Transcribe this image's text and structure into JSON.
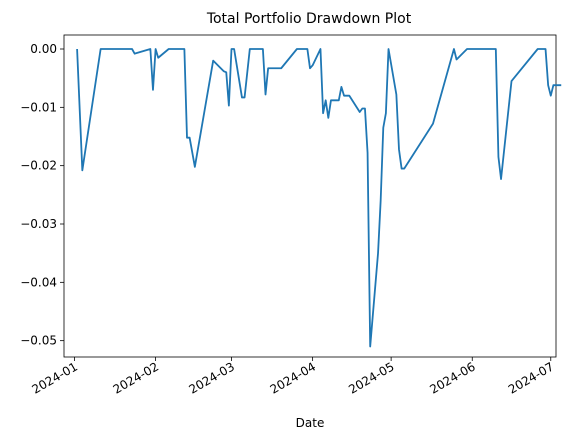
{
  "chart_data": {
    "type": "line",
    "title": "Total Portfolio Drawdown Plot",
    "xlabel": "Date",
    "ylabel": "",
    "x_is_date": true,
    "xlim": [
      "2023-12-28",
      "2024-07-03"
    ],
    "ylim": [
      -0.0528,
      0.0024
    ],
    "xticks": [
      {
        "date": "2024-01-01",
        "label": "2024-01"
      },
      {
        "date": "2024-02-01",
        "label": "2024-02"
      },
      {
        "date": "2024-03-01",
        "label": "2024-03"
      },
      {
        "date": "2024-04-01",
        "label": "2024-04"
      },
      {
        "date": "2024-05-01",
        "label": "2024-05"
      },
      {
        "date": "2024-06-01",
        "label": "2024-06"
      },
      {
        "date": "2024-07-01",
        "label": "2024-07"
      }
    ],
    "yticks": [
      {
        "value": 0.0,
        "label": "0.00"
      },
      {
        "value": -0.01,
        "label": "−0.01"
      },
      {
        "value": -0.02,
        "label": "−0.02"
      },
      {
        "value": -0.03,
        "label": "−0.03"
      },
      {
        "value": -0.04,
        "label": "−0.04"
      },
      {
        "value": -0.05,
        "label": "−0.05"
      }
    ],
    "grid": false,
    "legend": "none",
    "series": [
      {
        "color": "#1f77b4",
        "points": [
          [
            "2024-01-02",
            0.0
          ],
          [
            "2024-01-04",
            -0.0208
          ],
          [
            "2024-01-11",
            0.0
          ],
          [
            "2024-01-16",
            0.0
          ],
          [
            "2024-01-23",
            0.0
          ],
          [
            "2024-01-24",
            -0.0008
          ],
          [
            "2024-01-30",
            0.0
          ],
          [
            "2024-01-31",
            -0.007
          ],
          [
            "2024-02-01",
            0.0
          ],
          [
            "2024-02-02",
            -0.0015
          ],
          [
            "2024-02-06",
            0.0
          ],
          [
            "2024-02-12",
            0.0
          ],
          [
            "2024-02-13",
            -0.0152
          ],
          [
            "2024-02-14",
            -0.0152
          ],
          [
            "2024-02-16",
            -0.0202
          ],
          [
            "2024-02-23",
            -0.002
          ],
          [
            "2024-02-27",
            -0.0038
          ],
          [
            "2024-02-28",
            -0.004
          ],
          [
            "2024-02-29",
            -0.0097
          ],
          [
            "2024-03-01",
            0.0
          ],
          [
            "2024-03-02",
            0.0
          ],
          [
            "2024-03-05",
            -0.0083
          ],
          [
            "2024-03-06",
            -0.0083
          ],
          [
            "2024-03-08",
            0.0
          ],
          [
            "2024-03-13",
            0.0
          ],
          [
            "2024-03-14",
            -0.0078
          ],
          [
            "2024-03-15",
            -0.0033
          ],
          [
            "2024-03-20",
            -0.0033
          ],
          [
            "2024-03-26",
            0.0
          ],
          [
            "2024-03-30",
            0.0
          ],
          [
            "2024-03-31",
            -0.0033
          ],
          [
            "2024-04-01",
            -0.0028
          ],
          [
            "2024-04-04",
            0.0
          ],
          [
            "2024-04-05",
            -0.011
          ],
          [
            "2024-04-06",
            -0.0088
          ],
          [
            "2024-04-07",
            -0.0118
          ],
          [
            "2024-04-08",
            -0.0088
          ],
          [
            "2024-04-11",
            -0.0088
          ],
          [
            "2024-04-12",
            -0.0065
          ],
          [
            "2024-04-13",
            -0.008
          ],
          [
            "2024-04-15",
            -0.008
          ],
          [
            "2024-04-19",
            -0.0108
          ],
          [
            "2024-04-20",
            -0.0102
          ],
          [
            "2024-04-21",
            -0.0102
          ],
          [
            "2024-04-22",
            -0.0178
          ],
          [
            "2024-04-23",
            -0.051
          ],
          [
            "2024-04-26",
            -0.035
          ],
          [
            "2024-04-27",
            -0.026
          ],
          [
            "2024-04-28",
            -0.0135
          ],
          [
            "2024-04-29",
            -0.011
          ],
          [
            "2024-04-30",
            0.0
          ],
          [
            "2024-05-03",
            -0.0078
          ],
          [
            "2024-05-04",
            -0.0172
          ],
          [
            "2024-05-05",
            -0.0205
          ],
          [
            "2024-05-06",
            -0.0205
          ],
          [
            "2024-05-17",
            -0.0128
          ],
          [
            "2024-05-25",
            0.0
          ],
          [
            "2024-05-26",
            -0.0018
          ],
          [
            "2024-05-30",
            0.0
          ],
          [
            "2024-06-10",
            0.0
          ],
          [
            "2024-06-11",
            -0.0185
          ],
          [
            "2024-06-12",
            -0.0223
          ],
          [
            "2024-06-16",
            -0.0055
          ],
          [
            "2024-06-26",
            0.0
          ],
          [
            "2024-06-29",
            0.0
          ],
          [
            "2024-06-30",
            -0.0062
          ],
          [
            "2024-07-01",
            -0.008
          ],
          [
            "2024-07-02",
            -0.0062
          ],
          [
            "2024-07-05",
            -0.0062
          ]
        ]
      }
    ]
  }
}
